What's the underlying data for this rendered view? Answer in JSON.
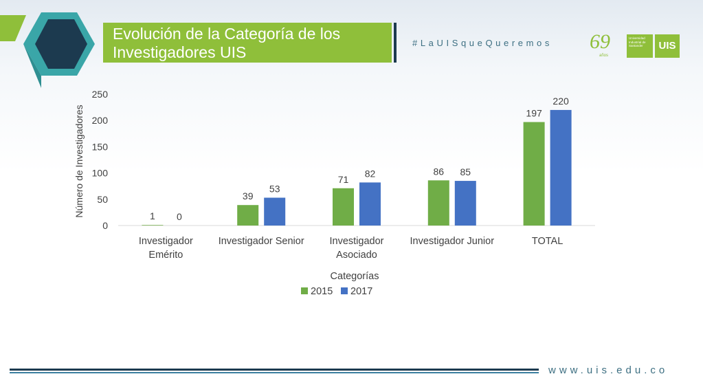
{
  "header": {
    "title": "Evolución de la Categoría de los Investigadores UIS",
    "hashtag": "#LaUISqueQueremos",
    "logo_anniversary": "69",
    "logo_anniversary_sub": "años",
    "logo_university": "Universidad Industrial de Santander",
    "logo_uis": "UIS"
  },
  "footer": {
    "url": "www.uis.edu.co"
  },
  "colors": {
    "series_2015": "#70ad47",
    "series_2017": "#4472c4",
    "title_band": "#8fbf3a",
    "accent_dark": "#1c3a4f"
  },
  "chart_data": {
    "type": "bar",
    "xlabel": "Categorías",
    "ylabel": "Número de Investigadores",
    "ylim": [
      0,
      250
    ],
    "yticks": [
      0,
      50,
      100,
      150,
      200,
      250
    ],
    "categories": [
      [
        "Investigador",
        "Emérito"
      ],
      [
        "Investigador Senior"
      ],
      [
        "Investigador",
        "Asociado"
      ],
      [
        "Investigador Junior"
      ],
      [
        "TOTAL"
      ]
    ],
    "series": [
      {
        "name": "2015",
        "color": "#70ad47",
        "values": [
          1,
          39,
          71,
          86,
          197
        ]
      },
      {
        "name": "2017",
        "color": "#4472c4",
        "values": [
          0,
          53,
          82,
          85,
          220
        ]
      }
    ],
    "legend": "bottom",
    "grid": false,
    "data_labels": true
  }
}
